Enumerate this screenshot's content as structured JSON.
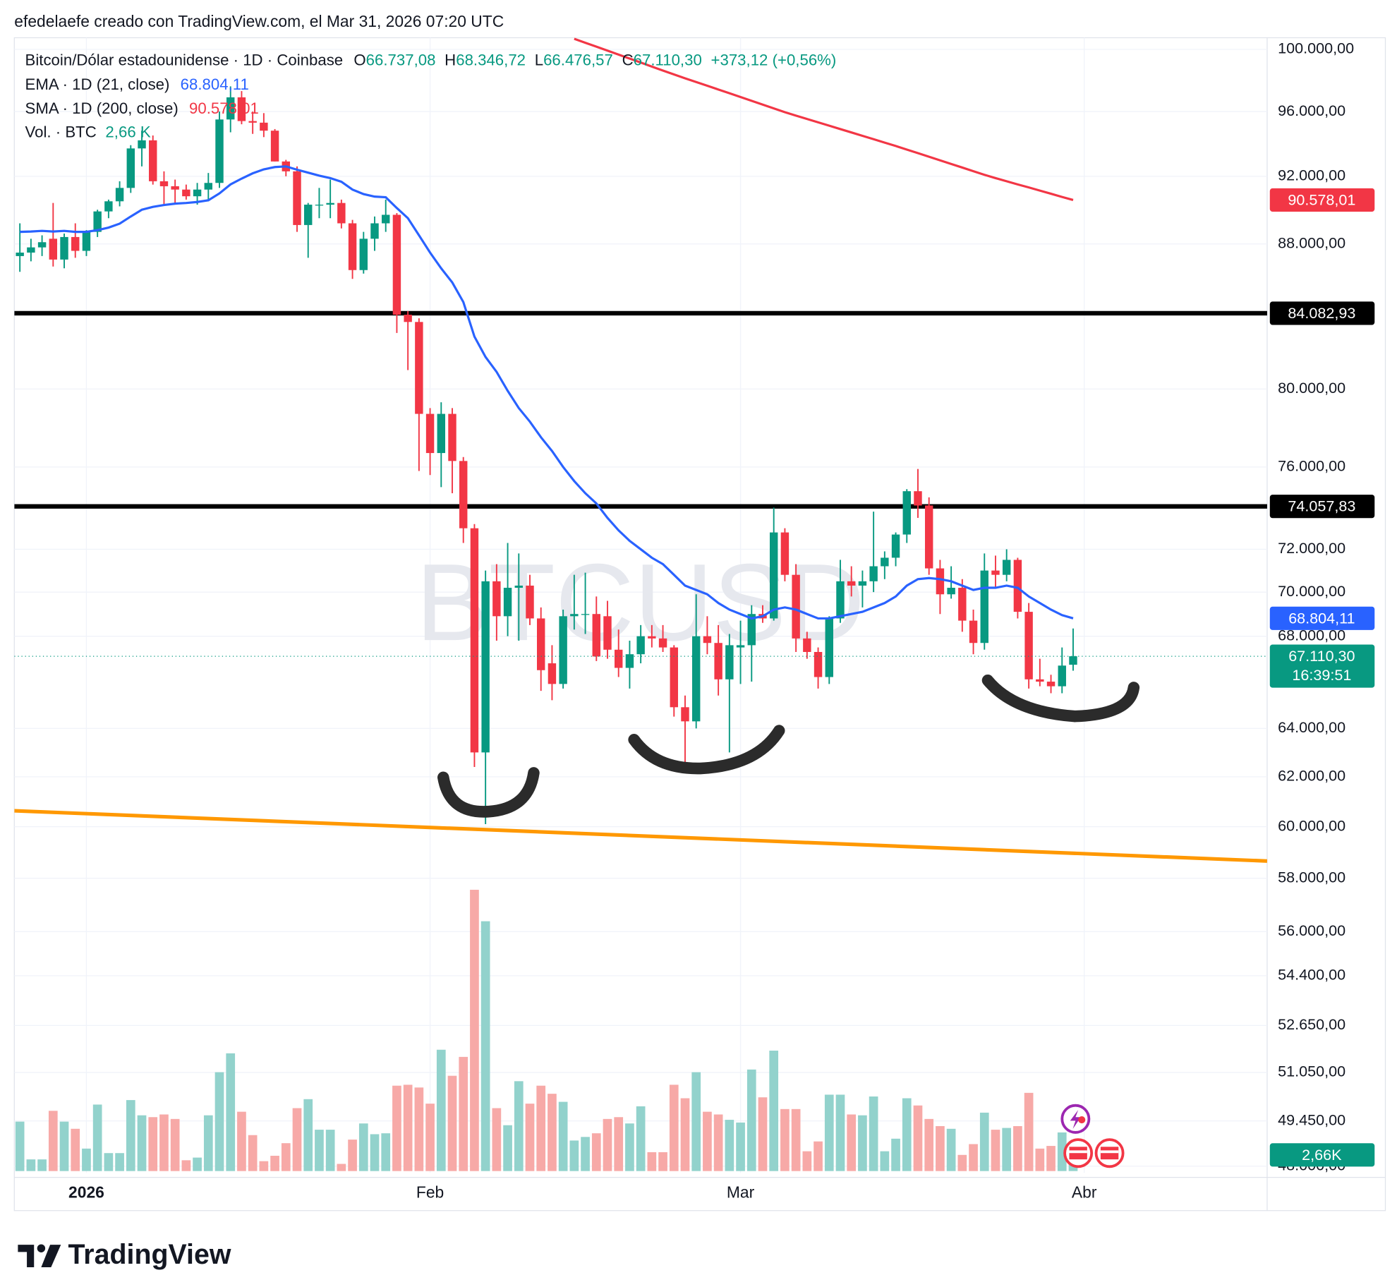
{
  "header": {
    "author_line": "efedelaefe creado con TradingView.com, el Mar 31, 2026 07:20 UTC"
  },
  "footer": {
    "brand": "TradingView"
  },
  "chart_data": {
    "type": "candlestick",
    "watermark": "BTCUSD",
    "legend": {
      "symbol": "Bitcoin/Dólar estadounidense · 1D · Coinbase",
      "ohlc": [
        {
          "key": "O",
          "label": "66.737,08"
        },
        {
          "key": "H",
          "label": "68.346,72"
        },
        {
          "key": "L",
          "label": "66.476,57"
        },
        {
          "key": "C",
          "label": "67.110,30"
        }
      ],
      "change": "+373,12 (+0,56%)"
    },
    "up_color": "#089981",
    "down_color": "#f23645",
    "open": [
      87300,
      87500,
      87800,
      88300,
      87100,
      88400,
      87600,
      88700,
      89900,
      90500,
      91300,
      93700,
      94200,
      91700,
      91400,
      91200,
      90800,
      91200,
      91600,
      95500,
      96900,
      95400,
      95300,
      94800,
      92900,
      92300,
      89100,
      90300,
      90300,
      90400,
      89200,
      86500,
      88300,
      89200,
      89700,
      84000,
      83600,
      78700,
      76700,
      78700,
      76300,
      73000,
      63000,
      70500,
      68900,
      70200,
      70300,
      68800,
      66800,
      65900,
      68900,
      69000,
      69000,
      68900,
      67400,
      66600,
      67200,
      68000,
      67900,
      67500,
      64900,
      64300,
      68000,
      67700,
      66100,
      67500,
      67600,
      69000,
      68800,
      72800,
      70800,
      67900,
      67300,
      66200,
      68800,
      70500,
      70300,
      70500,
      71200,
      71600,
      72700,
      74800,
      74100,
      71100,
      69900,
      70200,
      68700,
      67700,
      71000,
      70800,
      71500,
      69100,
      66100,
      66000,
      65800,
      66737.08
    ],
    "high": [
      89200,
      88300,
      88500,
      90400,
      88600,
      89200,
      88800,
      90000,
      90600,
      91700,
      93900,
      94800,
      94500,
      92300,
      91800,
      91500,
      91600,
      92200,
      96000,
      97600,
      97300,
      96000,
      95900,
      94900,
      93000,
      92600,
      90400,
      91300,
      91800,
      90600,
      89400,
      88700,
      89600,
      90600,
      89800,
      84200,
      83800,
      79000,
      79300,
      79000,
      76500,
      73200,
      71000,
      71300,
      72300,
      71800,
      70800,
      69300,
      67600,
      69200,
      70800,
      70900,
      69800,
      69600,
      68300,
      67800,
      68500,
      68500,
      68500,
      67600,
      65400,
      69900,
      68900,
      68500,
      68100,
      68700,
      69400,
      69400,
      74000,
      73000,
      71300,
      68200,
      67500,
      68900,
      71500,
      71200,
      71000,
      73800,
      71900,
      72800,
      74900,
      75900,
      74500,
      71500,
      71200,
      70600,
      69200,
      71800,
      71700,
      72000,
      71600,
      69500,
      67000,
      66300,
      67500,
      68346.72
    ],
    "low": [
      86400,
      87000,
      87300,
      86700,
      86600,
      87200,
      87300,
      88400,
      89500,
      90200,
      91000,
      92600,
      91500,
      90300,
      90400,
      90600,
      90300,
      90500,
      91300,
      94700,
      95200,
      94600,
      94400,
      92900,
      92000,
      88700,
      87200,
      89500,
      89500,
      88900,
      86000,
      86300,
      87600,
      88700,
      83000,
      81000,
      75800,
      75600,
      75000,
      74700,
      72300,
      62400,
      60100,
      67800,
      68000,
      67800,
      68500,
      65600,
      65200,
      65700,
      68300,
      68100,
      66900,
      67000,
      66200,
      65700,
      66800,
      67500,
      67300,
      64500,
      62600,
      64000,
      67200,
      65400,
      63000,
      65900,
      66000,
      68600,
      68700,
      70500,
      67300,
      67000,
      65700,
      65900,
      68600,
      69800,
      69300,
      70000,
      70600,
      71200,
      72300,
      73500,
      70800,
      69000,
      69700,
      68200,
      67200,
      67400,
      70200,
      70500,
      68800,
      65700,
      65800,
      65500,
      65500,
      66476.57
    ],
    "close": [
      87500,
      87800,
      88100,
      87100,
      88400,
      87600,
      88700,
      89900,
      90500,
      91300,
      93700,
      94200,
      91700,
      91400,
      91200,
      90800,
      91200,
      91600,
      95500,
      96900,
      95400,
      95300,
      94800,
      92900,
      92300,
      89100,
      90300,
      90300,
      90400,
      89200,
      86500,
      88300,
      89200,
      89700,
      84000,
      83600,
      78700,
      76700,
      78700,
      76300,
      73000,
      63000,
      70500,
      68900,
      70200,
      70300,
      68800,
      66500,
      65900,
      68900,
      69000,
      69000,
      67100,
      67400,
      66600,
      67200,
      68000,
      67900,
      67500,
      64900,
      64300,
      68000,
      67700,
      66100,
      67600,
      67600,
      69000,
      68800,
      72800,
      70800,
      67900,
      67300,
      66200,
      68800,
      70500,
      70300,
      70500,
      71200,
      71600,
      72700,
      74800,
      74100,
      71100,
      69900,
      70200,
      68700,
      67700,
      71000,
      70800,
      71500,
      69100,
      66100,
      66000,
      65800,
      66700,
      67110.3
    ],
    "last_price": {
      "label": "67.110,30",
      "countdown": "16:39:51"
    },
    "volume": {
      "name": "Vol. · BTC",
      "legend_label": "2,66 K",
      "tag_label": "2,66K",
      "vlim": [
        0,
        53280
      ],
      "up_color": "#92d2cc",
      "down_color": "#f7a9a7",
      "values": [
        8140,
        1920,
        1920,
        9920,
        8140,
        6960,
        3700,
        10950,
        2960,
        2960,
        11690,
        9180,
        8880,
        9320,
        8580,
        1780,
        2220,
        9180,
        16280,
        19390,
        9770,
        5920,
        1630,
        2520,
        4590,
        10360,
        11840,
        6810,
        6810,
        1180,
        5180,
        7840,
        6070,
        6220,
        14060,
        14210,
        13760,
        11100,
        19980,
        15690,
        18800,
        46320,
        41140,
        10360,
        7550,
        14800,
        11100,
        14060,
        12730,
        11400,
        5030,
        5620,
        6220,
        8580,
        8880,
        7840,
        10660,
        3110,
        3110,
        14210,
        11990,
        16280,
        9770,
        9320,
        8440,
        7990,
        16720,
        12140,
        19830,
        10210,
        10210,
        3260,
        4880,
        12580,
        12580,
        9320,
        9180,
        12280,
        3260,
        5330,
        11990,
        10800,
        8580,
        7400,
        6960,
        2660,
        4440,
        9620,
        6810,
        7100,
        7400,
        12880,
        3700,
        4140,
        6360,
        2660
      ]
    },
    "indicators": [
      {
        "name": "EMA · 1D (21, close)",
        "color": "#2962ff",
        "legend_label": "68.804,11",
        "tag_label": "68.804,11",
        "values": [
          88700,
          88720,
          88760,
          88720,
          88760,
          88700,
          88700,
          88800,
          88950,
          89180,
          89600,
          90000,
          90170,
          90280,
          90360,
          90400,
          90460,
          90560,
          90970,
          91510,
          91860,
          92180,
          92420,
          92560,
          92600,
          92400,
          92220,
          92040,
          91890,
          91670,
          91200,
          90930,
          90780,
          90740,
          90100,
          89500,
          88500,
          87500,
          86600,
          85800,
          84700,
          82800,
          81700,
          80900,
          79900,
          79000,
          78300,
          77500,
          76800,
          76000,
          75300,
          74700,
          74200,
          73500,
          72900,
          72400,
          72000,
          71600,
          71300,
          70800,
          70300,
          70100,
          69900,
          69500,
          69200,
          69000,
          68800,
          68900,
          69200,
          69300,
          69200,
          69000,
          68800,
          68800,
          68900,
          69000,
          69100,
          69300,
          69500,
          69800,
          70300,
          70600,
          70650,
          70600,
          70500,
          70300,
          70100,
          70200,
          70200,
          70300,
          70200,
          69800,
          69500,
          69200,
          68950,
          68804.11
        ]
      },
      {
        "name": "SMA · 1D (200, close)",
        "color": "#f23645",
        "legend_label": "90.578,01",
        "tag_label": "90.578,01",
        "values": [
          null,
          null,
          null,
          null,
          null,
          null,
          null,
          null,
          null,
          null,
          null,
          null,
          null,
          null,
          null,
          null,
          null,
          null,
          null,
          null,
          null,
          null,
          null,
          null,
          null,
          null,
          null,
          null,
          null,
          null,
          null,
          null,
          null,
          null,
          null,
          null,
          null,
          null,
          null,
          null,
          null,
          null,
          null,
          null,
          null,
          null,
          null,
          null,
          null,
          null,
          100700,
          100440,
          100180,
          99920,
          99660,
          99400,
          99140,
          98880,
          98620,
          98370,
          98120,
          97880,
          97640,
          97400,
          97160,
          96920,
          96680,
          96440,
          96200,
          95960,
          95740,
          95530,
          95320,
          95110,
          94900,
          94690,
          94480,
          94270,
          94060,
          93850,
          93630,
          93410,
          93190,
          92970,
          92750,
          92530,
          92310,
          92090,
          91890,
          91700,
          91510,
          91330,
          91140,
          90950,
          90760,
          90578.01
        ]
      }
    ],
    "hlines": [
      {
        "value": 84082.93,
        "label": "84.082,93",
        "color": "#000000"
      },
      {
        "value": 74057.83,
        "label": "74.057,83",
        "color": "#000000"
      }
    ],
    "trendline": {
      "x": [
        -0.5,
        112.5
      ],
      "y": [
        60630,
        58660
      ],
      "color": "#ff9800"
    },
    "log_scale": true,
    "grid": true,
    "ylim": [
      47790,
      100770
    ],
    "yticks": [
      {
        "value": 100000,
        "label": "100.000,00"
      },
      {
        "value": 96000,
        "label": "96.000,00"
      },
      {
        "value": 92000,
        "label": "92.000,00"
      },
      {
        "value": 88000,
        "label": "88.000,00"
      },
      {
        "value": 80000,
        "label": "80.000,00"
      },
      {
        "value": 76000,
        "label": "76.000,00"
      },
      {
        "value": 72000,
        "label": "72.000,00"
      },
      {
        "value": 70000,
        "label": "70.000,00"
      },
      {
        "value": 68000,
        "label": "68.000,00"
      },
      {
        "value": 64000,
        "label": "64.000,00"
      },
      {
        "value": 62000,
        "label": "62.000,00"
      },
      {
        "value": 60000,
        "label": "60.000,00"
      },
      {
        "value": 58000,
        "label": "58.000,00"
      },
      {
        "value": 56000,
        "label": "56.000,00"
      },
      {
        "value": 54400,
        "label": "54.400,00"
      },
      {
        "value": 52650,
        "label": "52.650,00"
      },
      {
        "value": 51050,
        "label": "51.050,00"
      },
      {
        "value": 49450,
        "label": "49.450,00"
      },
      {
        "value": 48000,
        "label": "48.000,00"
      }
    ],
    "xlim": [
      -0.5,
      112.5
    ],
    "xticks": [
      {
        "value": 6,
        "label": "2026"
      },
      {
        "value": 37,
        "label": "Feb"
      },
      {
        "value": 65,
        "label": "Mar"
      },
      {
        "value": 96,
        "label": "Abr"
      }
    ]
  }
}
